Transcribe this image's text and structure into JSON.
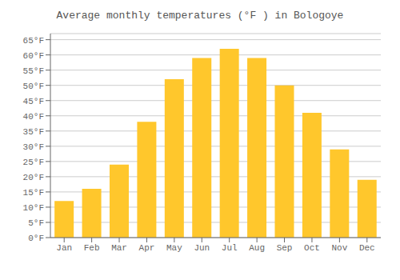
{
  "chart_data": {
    "type": "bar",
    "title": "Average monthly temperatures (°F ) in Bologoye",
    "categories": [
      "Jan",
      "Feb",
      "Mar",
      "Apr",
      "May",
      "Jun",
      "Jul",
      "Aug",
      "Sep",
      "Oct",
      "Nov",
      "Dec"
    ],
    "values": [
      12,
      16,
      24,
      38,
      52,
      59,
      62,
      59,
      50,
      41,
      29,
      19
    ],
    "color": "#FFC72C",
    "ylim": [
      0,
      67
    ],
    "yticks": [
      {
        "value": 0,
        "label": "0°F"
      },
      {
        "value": 5,
        "label": "5°F"
      },
      {
        "value": 10,
        "label": "10°F"
      },
      {
        "value": 15,
        "label": "15°F"
      },
      {
        "value": 20,
        "label": "20°F"
      },
      {
        "value": 25,
        "label": "25°F"
      },
      {
        "value": 30,
        "label": "30°F"
      },
      {
        "value": 35,
        "label": "35°F"
      },
      {
        "value": 40,
        "label": "40°F"
      },
      {
        "value": 45,
        "label": "45°F"
      },
      {
        "value": 50,
        "label": "50°F"
      },
      {
        "value": 55,
        "label": "55°F"
      },
      {
        "value": 60,
        "label": "60°F"
      },
      {
        "value": 65,
        "label": "65°F"
      }
    ],
    "grid": true
  }
}
